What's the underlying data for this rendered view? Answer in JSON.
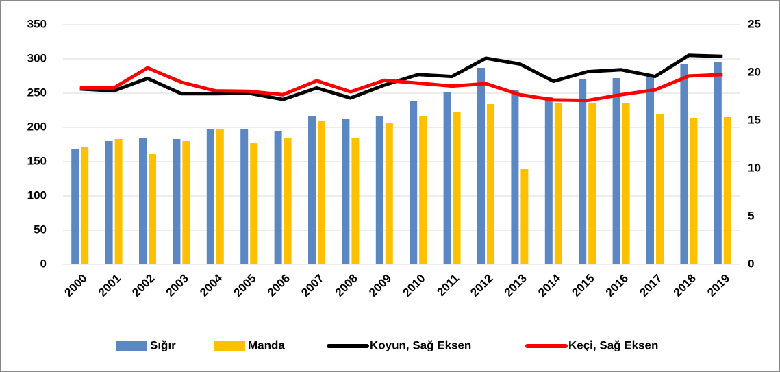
{
  "chart_data": {
    "type": "bar_line",
    "categories": [
      "2000",
      "2001",
      "2002",
      "2003",
      "2004",
      "2005",
      "2006",
      "2007",
      "2008",
      "2009",
      "2010",
      "2011",
      "2012",
      "2013",
      "2014",
      "2015",
      "2016",
      "2017",
      "2018",
      "2019"
    ],
    "series": [
      {
        "name": "Sığır",
        "color": "#5b87c3",
        "kind": "bar",
        "values": [
          168,
          180,
          185,
          183,
          197,
          197,
          195,
          216,
          213,
          217,
          238,
          251,
          287,
          254,
          244,
          270,
          272,
          273,
          293,
          296
        ]
      },
      {
        "name": "Manda",
        "color": "#ffc000",
        "kind": "bar",
        "values": [
          172,
          183,
          161,
          180,
          198,
          177,
          184,
          209,
          184,
          207,
          216,
          222,
          234,
          140,
          235,
          235,
          235,
          219,
          214,
          215
        ]
      },
      {
        "name": "Koyun, Sağ Eksen",
        "color": "#000000",
        "kind": "line",
        "axis": "y2",
        "values": [
          18.3,
          18.1,
          19.4,
          17.8,
          17.8,
          17.85,
          17.2,
          18.4,
          17.35,
          18.7,
          19.8,
          19.6,
          21.5,
          20.9,
          19.1,
          20.1,
          20.3,
          19.6,
          21.8,
          21.7
        ]
      },
      {
        "name": "Keçi, Sağ Eksen",
        "color": "#ff0000",
        "kind": "line",
        "axis": "y2",
        "values": [
          18.4,
          18.4,
          20.5,
          19.0,
          18.1,
          18.05,
          17.7,
          19.15,
          18.0,
          19.2,
          18.9,
          18.6,
          18.85,
          17.7,
          17.15,
          17.1,
          17.7,
          18.2,
          19.65,
          19.8
        ]
      }
    ],
    "ylim": [
      0,
      350
    ],
    "yticks": [
      0,
      50,
      100,
      150,
      200,
      250,
      300,
      350
    ],
    "y2lim": [
      0,
      25
    ],
    "y2ticks": [
      0,
      5,
      10,
      15,
      20,
      25
    ],
    "grid": true,
    "legend": "bottom"
  }
}
